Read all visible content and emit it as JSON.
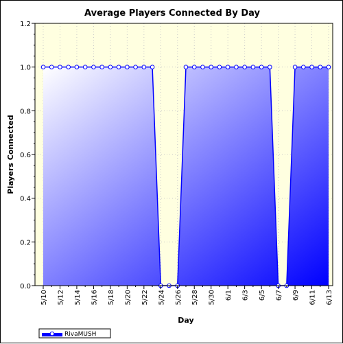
{
  "chart_data": {
    "type": "area",
    "title": "Average Players Connected By Day",
    "xlabel": "Day",
    "ylabel": "Players Connected",
    "ylim": [
      0,
      1.2
    ],
    "y_ticks": [
      "0.0",
      "0.2",
      "0.4",
      "0.6",
      "0.8",
      "1.0",
      "1.2"
    ],
    "x_tick_labels": [
      "5/10",
      "5/12",
      "5/14",
      "5/16",
      "5/18",
      "5/20",
      "5/22",
      "5/24",
      "5/26",
      "5/28",
      "5/30",
      "6/1",
      "6/3",
      "6/5",
      "6/7",
      "6/9",
      "6/11",
      "6/13"
    ],
    "x": [
      "5/10",
      "5/11",
      "5/12",
      "5/13",
      "5/14",
      "5/15",
      "5/16",
      "5/17",
      "5/18",
      "5/19",
      "5/20",
      "5/21",
      "5/22",
      "5/23",
      "5/24",
      "5/25",
      "5/26",
      "5/27",
      "5/28",
      "5/29",
      "5/30",
      "5/31",
      "6/1",
      "6/2",
      "6/3",
      "6/4",
      "6/5",
      "6/6",
      "6/7",
      "6/8",
      "6/9",
      "6/10",
      "6/11",
      "6/12",
      "6/13"
    ],
    "series": [
      {
        "name": "RivaMUSH",
        "values": [
          1,
          1,
          1,
          1,
          1,
          1,
          1,
          1,
          1,
          1,
          1,
          1,
          1,
          1,
          0,
          0,
          0,
          1,
          1,
          1,
          1,
          1,
          1,
          1,
          1,
          1,
          1,
          1,
          0,
          0,
          1,
          1,
          1,
          1,
          1
        ]
      }
    ],
    "grid": true,
    "plot_background": "#ffffe0",
    "fill_gradient": [
      "#ffffff",
      "#0000ff"
    ],
    "line_color": "#0000ff",
    "legend_position": "bottom-left"
  }
}
